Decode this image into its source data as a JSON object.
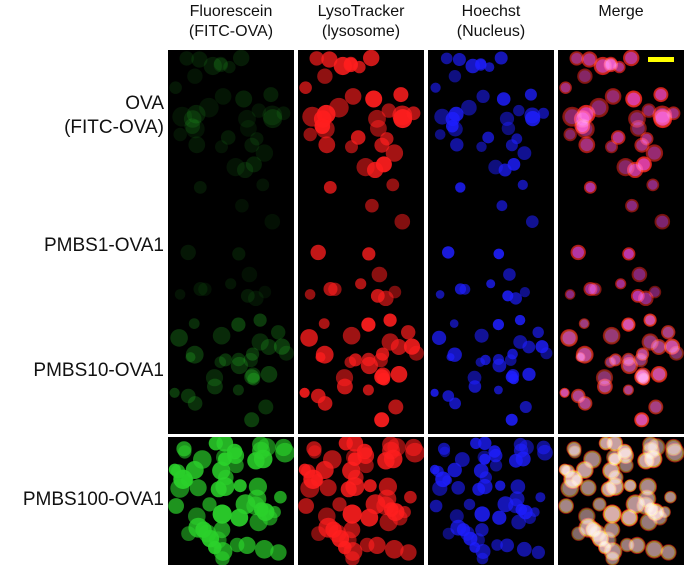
{
  "columns": [
    {
      "label": "Fluorescein\n(FITC-OVA)",
      "channel": "green"
    },
    {
      "label": "LysoTracker\n(lysosome)",
      "channel": "red"
    },
    {
      "label": "Hoechst\n(Nucleus)",
      "channel": "blue"
    },
    {
      "label": "Merge",
      "channel": "merge"
    }
  ],
  "rows": [
    {
      "label": "OVA\n(FITC-OVA)",
      "key": "ova"
    },
    {
      "label": "PMBS1-OVA1",
      "key": "pmbs1"
    },
    {
      "label": "PMBS10-OVA1",
      "key": "pmbs10"
    },
    {
      "label": "PMBS100-OVA1",
      "key": "pmbs100"
    }
  ],
  "colors": {
    "green": "#2bd12b",
    "red": "#ff1e1e",
    "blue": "#1e1eff",
    "magenta": "#ff3cff",
    "yellow": "#ffff40",
    "scale_bar": "#ffff00",
    "background": "#000000"
  },
  "intensity": {
    "ova": {
      "green": 0.15,
      "red": 0.95,
      "blue": 0.85
    },
    "pmbs1": {
      "green": 0.12,
      "red": 0.8,
      "blue": 0.9
    },
    "pmbs10": {
      "green": 0.3,
      "red": 0.95,
      "blue": 0.9
    },
    "pmbs100": {
      "green": 0.95,
      "red": 0.9,
      "blue": 0.85
    }
  }
}
